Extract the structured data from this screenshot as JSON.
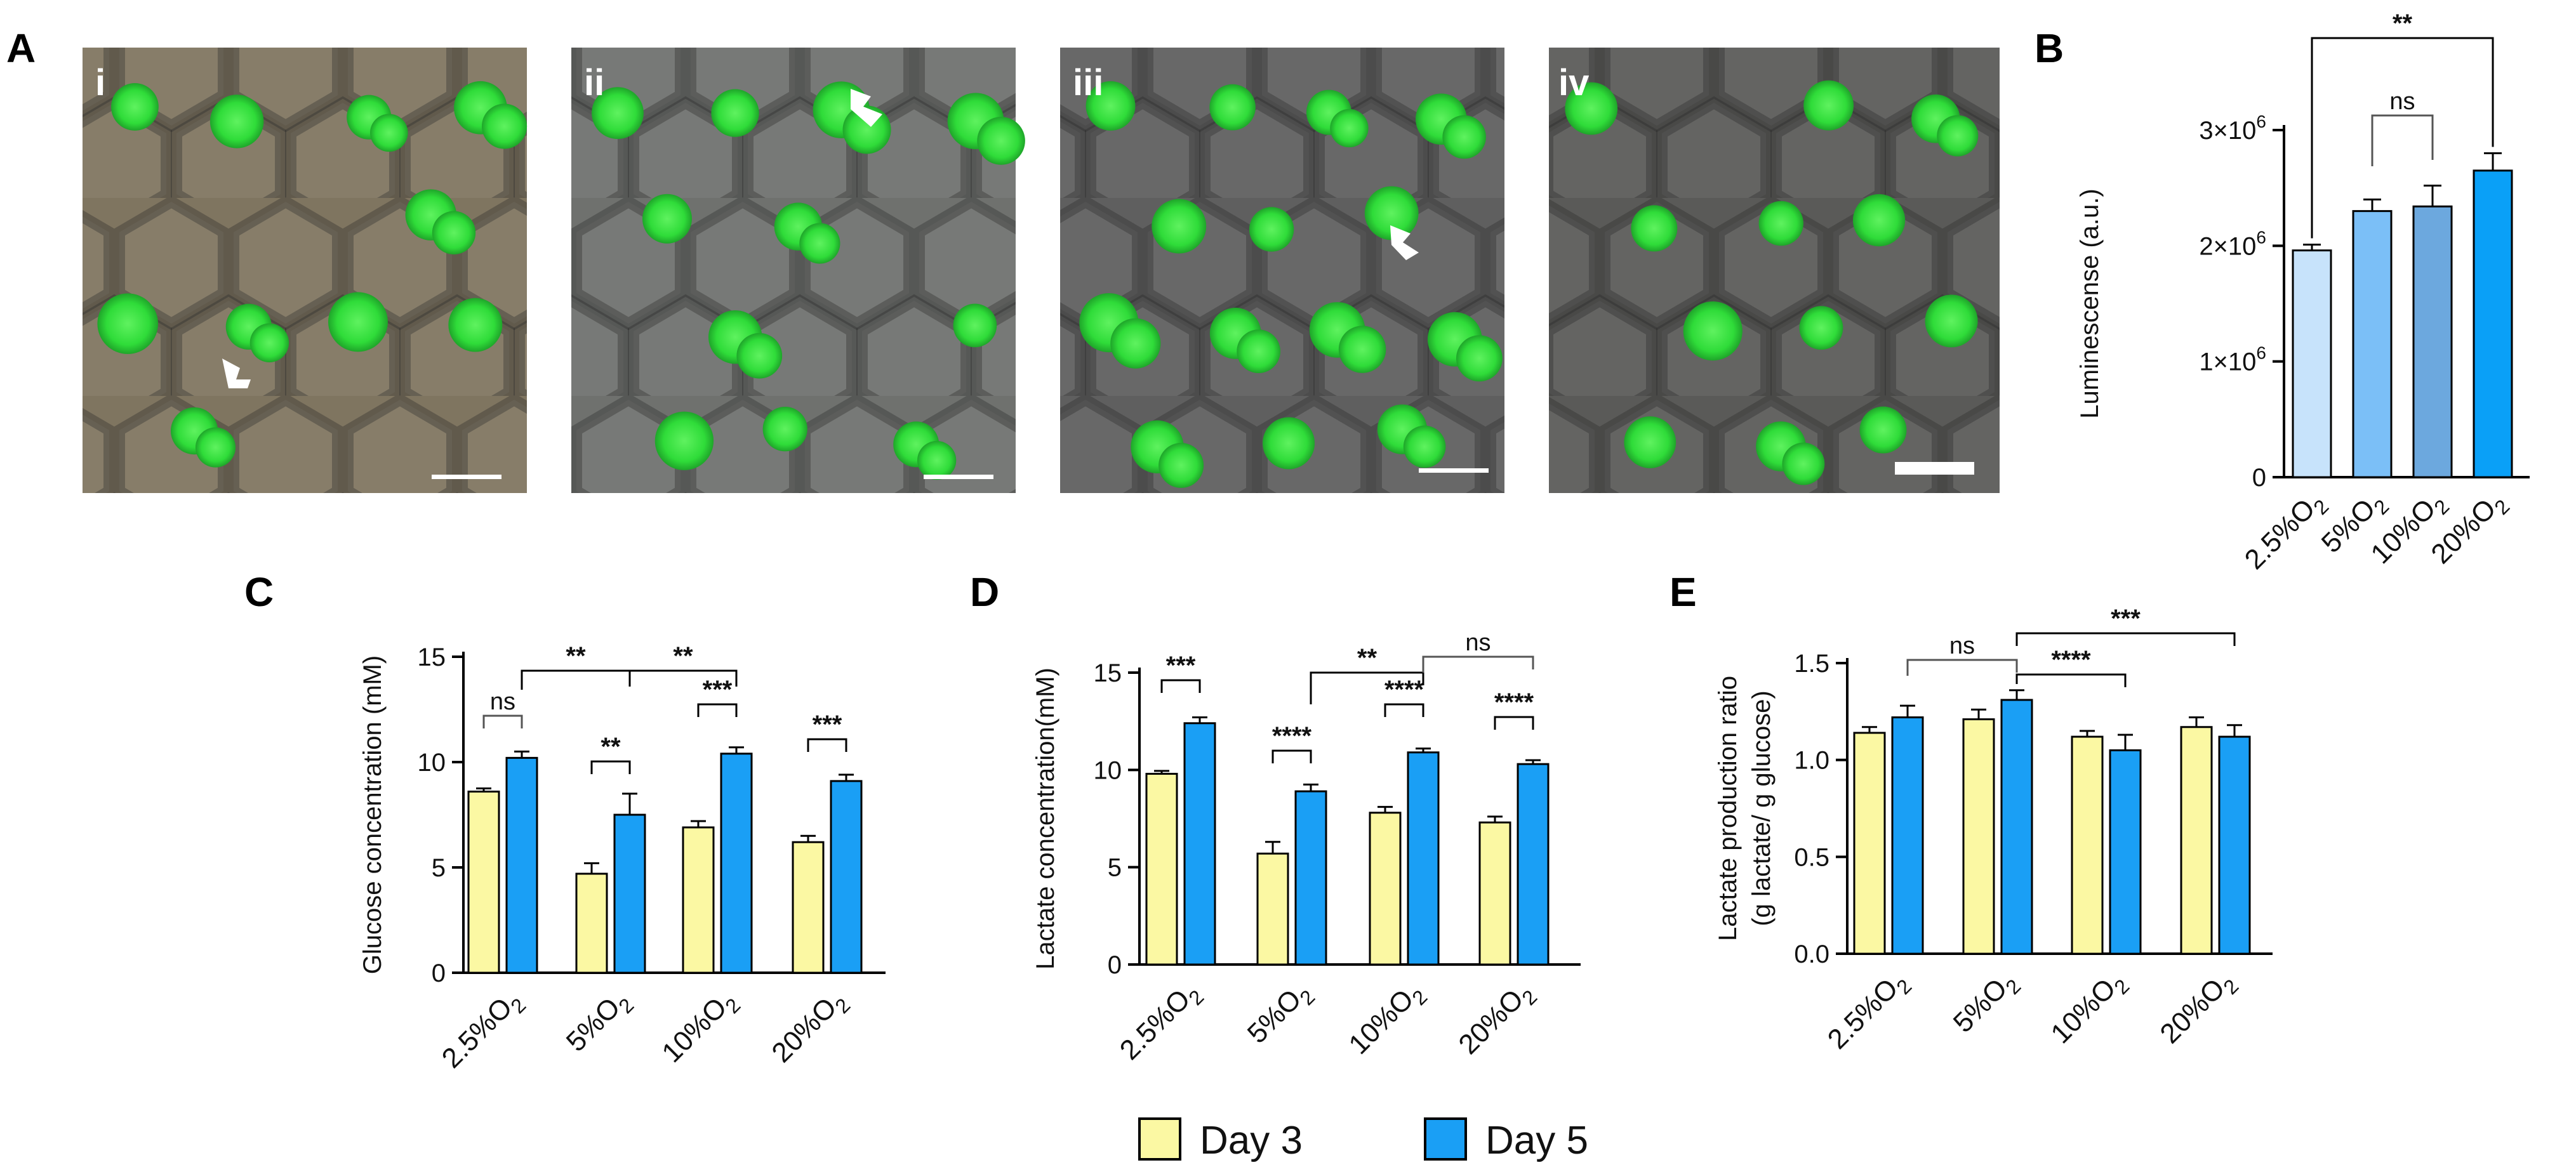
{
  "panel_labels": {
    "A": "A",
    "B": "B",
    "C": "C",
    "D": "D",
    "E": "E"
  },
  "micrographs": [
    {
      "label": "i",
      "tone": "#7f7560"
    },
    {
      "label": "ii",
      "tone": "#6f716e"
    },
    {
      "label": "iii",
      "tone": "#5f5f5f"
    },
    {
      "label": "iv",
      "tone": "#5a5a58"
    }
  ],
  "colors": {
    "day3": "#fbf8a3",
    "day5": "#1a9ff5",
    "b_bars": [
      "#c7e3fb",
      "#7bbff7",
      "#6ca8de",
      "#0aa0f7"
    ],
    "spheroid": "#2fdc39",
    "axis": "#000000"
  },
  "legend": {
    "day3": "Day 3",
    "day5": "Day 5"
  },
  "chart_data": [
    {
      "id": "B",
      "type": "bar",
      "categories": [
        "2.5%O2",
        "5%O2",
        "10%O2",
        "20%O2"
      ],
      "values": [
        1960000,
        2300000,
        2340000,
        2650000
      ],
      "errors": [
        50000,
        100000,
        180000,
        150000
      ],
      "ylabel": "Luminescense (a.u.)",
      "ylim": [
        0,
        3000000
      ],
      "yticks": [
        0,
        1000000,
        2000000,
        3000000
      ],
      "ytick_labels": [
        "0",
        "1×10",
        "2×10",
        "3×10"
      ],
      "ytick_exp": [
        "",
        "6",
        "6",
        "6"
      ],
      "significance": [
        {
          "from": 0,
          "to": 3,
          "label": "**"
        },
        {
          "from": 1,
          "to": 2,
          "label": "ns"
        }
      ]
    },
    {
      "id": "C",
      "type": "bar",
      "categories": [
        "2.5%O2",
        "5%O2",
        "10%O2",
        "20%O2"
      ],
      "series": [
        {
          "name": "Day 3",
          "values": [
            8.6,
            4.7,
            6.9,
            6.2
          ],
          "errors": [
            0.15,
            0.5,
            0.3,
            0.3
          ]
        },
        {
          "name": "Day 5",
          "values": [
            10.2,
            7.5,
            10.4,
            9.1
          ],
          "errors": [
            0.3,
            1.0,
            0.3,
            0.3
          ]
        }
      ],
      "ylabel": "Glucose concentration (mM)",
      "ylim": [
        0,
        15
      ],
      "yticks": [
        0,
        5,
        10,
        15
      ],
      "ytick_labels": [
        "0",
        "5",
        "10",
        "15"
      ],
      "significance": [
        {
          "a": [
            0,
            0
          ],
          "b": [
            0,
            1
          ],
          "label": "ns"
        },
        {
          "a": [
            1,
            0
          ],
          "b": [
            1,
            1
          ],
          "label": "**"
        },
        {
          "a": [
            2,
            0
          ],
          "b": [
            2,
            1
          ],
          "label": "***"
        },
        {
          "a": [
            3,
            0
          ],
          "b": [
            3,
            1
          ],
          "label": "***"
        },
        {
          "a": [
            0,
            1
          ],
          "b": [
            1,
            1
          ],
          "label": "**"
        },
        {
          "a": [
            1,
            1
          ],
          "b": [
            2,
            1
          ],
          "label": "**"
        }
      ]
    },
    {
      "id": "D",
      "type": "bar",
      "categories": [
        "2.5%O2",
        "5%O2",
        "10%O2",
        "20%O2"
      ],
      "series": [
        {
          "name": "Day 3",
          "values": [
            9.8,
            5.7,
            7.8,
            7.3
          ],
          "errors": [
            0.15,
            0.6,
            0.3,
            0.3
          ]
        },
        {
          "name": "Day 5",
          "values": [
            12.4,
            8.9,
            10.9,
            10.3
          ],
          "errors": [
            0.3,
            0.35,
            0.2,
            0.2
          ]
        }
      ],
      "ylabel": "Lactate concentration(mM)",
      "ylim": [
        0,
        15
      ],
      "yticks": [
        0,
        5,
        10,
        15
      ],
      "ytick_labels": [
        "0",
        "5",
        "10",
        "15"
      ],
      "significance": [
        {
          "a": [
            0,
            0
          ],
          "b": [
            0,
            1
          ],
          "label": "***"
        },
        {
          "a": [
            1,
            0
          ],
          "b": [
            1,
            1
          ],
          "label": "****"
        },
        {
          "a": [
            2,
            0
          ],
          "b": [
            2,
            1
          ],
          "label": "****"
        },
        {
          "a": [
            3,
            0
          ],
          "b": [
            3,
            1
          ],
          "label": "****"
        },
        {
          "a": [
            1,
            1
          ],
          "b": [
            2,
            1
          ],
          "label": "**"
        },
        {
          "a": [
            2,
            1
          ],
          "b": [
            3,
            1
          ],
          "label": "ns"
        }
      ]
    },
    {
      "id": "E",
      "type": "bar",
      "categories": [
        "2.5%O2",
        "5%O2",
        "10%O2",
        "20%O2"
      ],
      "series": [
        {
          "name": "Day 3",
          "values": [
            1.14,
            1.21,
            1.12,
            1.17
          ],
          "errors": [
            0.03,
            0.05,
            0.03,
            0.05
          ]
        },
        {
          "name": "Day 5",
          "values": [
            1.22,
            1.31,
            1.05,
            1.12
          ],
          "errors": [
            0.06,
            0.05,
            0.08,
            0.06
          ]
        }
      ],
      "ylabel": "Lactate production ratio",
      "ylabel2": "(g lactate/ g glucose)",
      "ylim": [
        0,
        1.5
      ],
      "yticks": [
        0,
        0.5,
        1.0,
        1.5
      ],
      "ytick_labels": [
        "0.0",
        "0.5",
        "1.0",
        "1.5"
      ],
      "significance": [
        {
          "a": [
            0,
            1
          ],
          "b": [
            1,
            1
          ],
          "label": "ns"
        },
        {
          "a": [
            1,
            1
          ],
          "b": [
            2,
            1
          ],
          "label": "****"
        },
        {
          "a": [
            1,
            1
          ],
          "b": [
            3,
            1
          ],
          "label": "***"
        }
      ]
    }
  ]
}
